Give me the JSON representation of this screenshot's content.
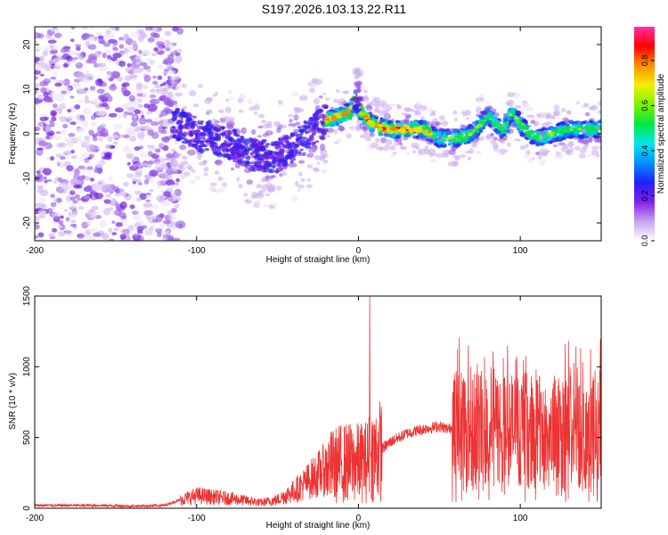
{
  "title": "S197.2026.103.13.22.R11",
  "colors": {
    "snr_line": "#ee3333",
    "axis": "#000000",
    "colormap": [
      "#ffffff",
      "#dcc8f0",
      "#b090e0",
      "#7b2ce6",
      "#3a1ae0",
      "#1a5cff",
      "#00d8e8",
      "#00e040",
      "#e8e800",
      "#ff8c00",
      "#ff0020",
      "#ff40c0"
    ]
  },
  "chart_data": [
    {
      "type": "heatmap",
      "name": "spectrogram",
      "title": "S197.2026.103.13.22.R11",
      "xlabel": "Height of straight line (km)",
      "ylabel": "Frequency (Hz)",
      "xlim": [
        -200,
        150
      ],
      "ylim": [
        -24,
        24
      ],
      "xticks": [
        -200,
        -100,
        0,
        100
      ],
      "xtick_labels": [
        "-200",
        "-100",
        "0",
        "100"
      ],
      "yticks": [
        -20,
        -10,
        0,
        10,
        20
      ],
      "ytick_labels": [
        "-20",
        "-10",
        "0",
        "10",
        "20"
      ],
      "ridge": {
        "x": [
          -110,
          -100,
          -90,
          -80,
          -70,
          -60,
          -50,
          -40,
          -30,
          -20,
          -12,
          -5,
          -2,
          0,
          3,
          10,
          20,
          30,
          40,
          50,
          60,
          70,
          80,
          85,
          90,
          95,
          100,
          110,
          120,
          130,
          140,
          150
        ],
        "freq": [
          2,
          0,
          -1,
          -2,
          -4,
          -5,
          -5,
          -3,
          0,
          3,
          4,
          5,
          8,
          6,
          4,
          2,
          1,
          1,
          1,
          -1,
          -1,
          0,
          4,
          2,
          1,
          5,
          2,
          -1,
          0,
          1,
          1,
          1
        ]
      },
      "colorbar": {
        "label": "Normalized spectral amplitude",
        "range": [
          0,
          0.95
        ],
        "ticks": [
          0.0,
          0.2,
          0.4,
          0.6,
          0.8
        ],
        "tick_labels": [
          "0.0",
          "0.2",
          "0.4",
          "0.6",
          "0.8"
        ]
      }
    },
    {
      "type": "line",
      "name": "snr",
      "xlabel": "Height of straight line (km)",
      "ylabel": "SNR (10 * v/v)",
      "xlim": [
        -200,
        150
      ],
      "ylim": [
        0,
        1500
      ],
      "xticks": [
        -200,
        -100,
        0,
        100
      ],
      "xtick_labels": [
        "-200",
        "-100",
        "0",
        "100"
      ],
      "yticks": [
        0,
        500,
        1000,
        1500
      ],
      "ytick_labels": [
        "0",
        "500",
        "1000",
        "1500"
      ],
      "series": [
        {
          "name": "SNR",
          "x": [
            -200,
            -180,
            -160,
            -140,
            -120,
            -110,
            -100,
            -90,
            -80,
            -70,
            -60,
            -50,
            -40,
            -30,
            -20,
            -10,
            0,
            5,
            8,
            10,
            20,
            30,
            40,
            50,
            55,
            60,
            70,
            80,
            90,
            100,
            110,
            120,
            130,
            140,
            150
          ],
          "values": [
            20,
            20,
            20,
            15,
            20,
            60,
            90,
            80,
            70,
            55,
            40,
            60,
            120,
            200,
            280,
            320,
            320,
            330,
            1500,
            380,
            470,
            530,
            560,
            580,
            560,
            580,
            600,
            580,
            550,
            560,
            540,
            520,
            560,
            540,
            560
          ]
        }
      ]
    }
  ]
}
